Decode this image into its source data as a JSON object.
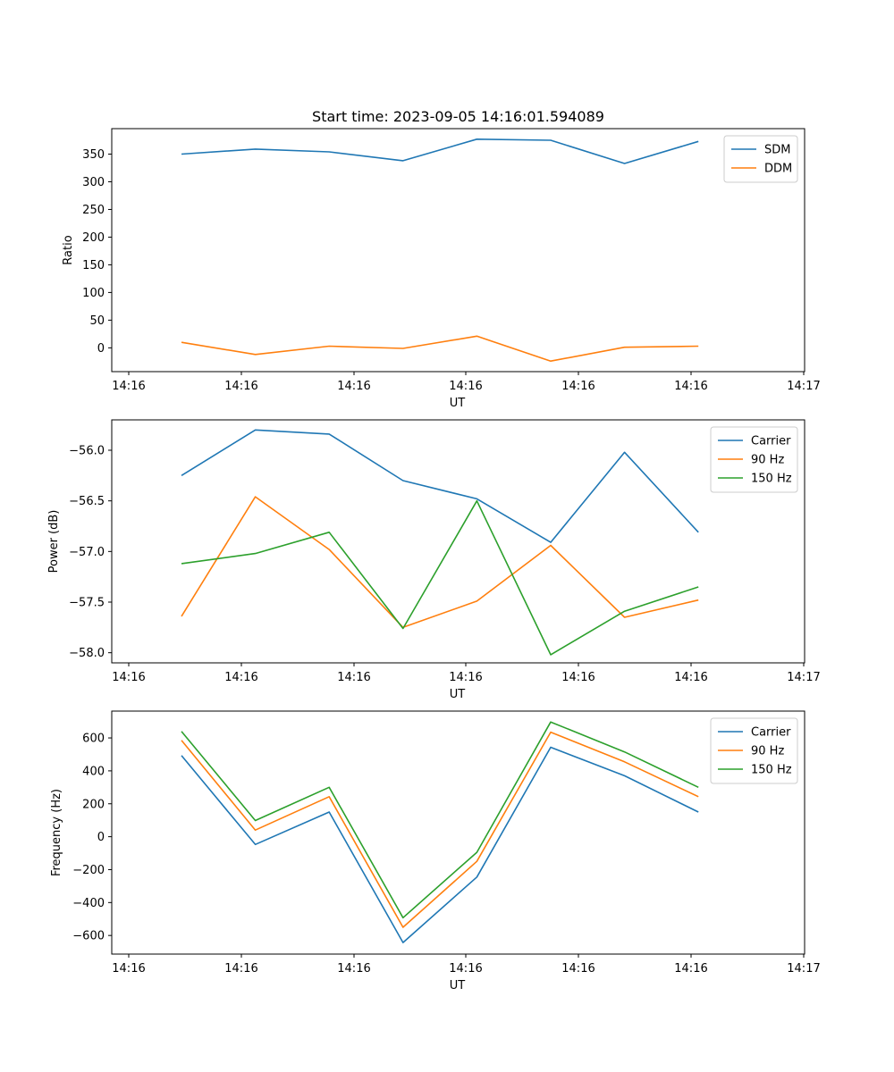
{
  "chart_data": [
    {
      "type": "line",
      "title": "Start time: 2023-09-05 14:16:01.594089",
      "xlabel": "UT",
      "ylabel": "Ratio",
      "x_ticks": [
        "14:16",
        "14:16",
        "14:16",
        "14:16",
        "14:16",
        "14:16",
        "14:17"
      ],
      "x": [
        1,
        2,
        3,
        4,
        5,
        6,
        7,
        8
      ],
      "xlim": [
        0,
        9.25
      ],
      "ylim": [
        -43,
        396
      ],
      "y_ticks": [
        0,
        50,
        100,
        150,
        200,
        250,
        300,
        350
      ],
      "legend": "top-right",
      "series": [
        {
          "name": "SDM",
          "color": "#1f77b4",
          "values": [
            350,
            359,
            354,
            338,
            377,
            375,
            333,
            373
          ]
        },
        {
          "name": "DDM",
          "color": "#ff7f0e",
          "values": [
            10,
            -12,
            3,
            -1,
            21,
            -24,
            1,
            3
          ]
        }
      ]
    },
    {
      "type": "line",
      "title": "",
      "xlabel": "UT",
      "ylabel": "Power (dB)",
      "x_ticks": [
        "14:16",
        "14:16",
        "14:16",
        "14:16",
        "14:16",
        "14:16",
        "14:17"
      ],
      "x": [
        1,
        2,
        3,
        4,
        5,
        6,
        7,
        8
      ],
      "xlim": [
        0,
        9.25
      ],
      "ylim": [
        -58.1,
        -55.7
      ],
      "y_ticks": [
        -58.0,
        -57.5,
        -57.0,
        -56.5,
        -56.0
      ],
      "y_tick_labels": [
        "−58.0",
        "−57.5",
        "−57.0",
        "−56.5",
        "−56.0"
      ],
      "legend": "top-right",
      "series": [
        {
          "name": "Carrier",
          "color": "#1f77b4",
          "values": [
            -56.25,
            -55.8,
            -55.84,
            -56.3,
            -56.48,
            -56.91,
            -56.02,
            -56.81
          ]
        },
        {
          "name": "90 Hz",
          "color": "#ff7f0e",
          "values": [
            -57.64,
            -56.46,
            -56.98,
            -57.75,
            -57.49,
            -56.94,
            -57.65,
            -57.48
          ]
        },
        {
          "name": "150 Hz",
          "color": "#2ca02c",
          "values": [
            -57.12,
            -57.02,
            -56.81,
            -57.76,
            -56.5,
            -58.02,
            -57.59,
            -57.35
          ]
        }
      ]
    },
    {
      "type": "line",
      "title": "",
      "xlabel": "UT",
      "ylabel": "Frequency (Hz)",
      "x_ticks": [
        "14:16",
        "14:16",
        "14:16",
        "14:16",
        "14:16",
        "14:16",
        "14:17"
      ],
      "x": [
        1,
        2,
        3,
        4,
        5,
        6,
        7,
        8
      ],
      "xlim": [
        0,
        9.25
      ],
      "ylim": [
        -713,
        763
      ],
      "y_ticks": [
        -600,
        -400,
        -200,
        0,
        200,
        400,
        600
      ],
      "y_tick_labels": [
        "−600",
        "−400",
        "−200",
        "0",
        "200",
        "400",
        "600"
      ],
      "legend": "top-right",
      "series": [
        {
          "name": "Carrier",
          "color": "#1f77b4",
          "values": [
            493,
            -47,
            150,
            -643,
            -245,
            543,
            370,
            150
          ]
        },
        {
          "name": "90 Hz",
          "color": "#ff7f0e",
          "values": [
            585,
            40,
            243,
            -550,
            -150,
            635,
            455,
            243
          ]
        },
        {
          "name": "150 Hz",
          "color": "#2ca02c",
          "values": [
            640,
            98,
            300,
            -492,
            -95,
            697,
            515,
            300
          ]
        }
      ]
    }
  ]
}
